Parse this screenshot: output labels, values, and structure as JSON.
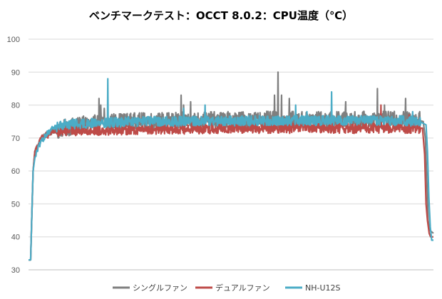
{
  "chart_data": {
    "type": "line",
    "title": "ベンチマークテスト：OCCT 8.0.2：CPU温度（℃）",
    "xlabel": "",
    "ylabel": "",
    "ylim": [
      30,
      100
    ],
    "yticks": [
      30,
      40,
      50,
      60,
      70,
      80,
      90,
      100
    ],
    "grid": true,
    "legend_position": "bottom",
    "x_count": 1150,
    "series": [
      {
        "name": "シングルファン",
        "color": "#7f7f7f",
        "keypoints": [
          [
            0,
            33
          ],
          [
            6,
            33
          ],
          [
            9,
            45
          ],
          [
            13,
            60
          ],
          [
            18,
            66
          ],
          [
            27,
            68
          ],
          [
            37,
            70
          ],
          [
            50,
            71
          ],
          [
            70,
            72
          ],
          [
            100,
            73
          ],
          [
            150,
            74
          ],
          [
            250,
            75
          ],
          [
            600,
            75.5
          ],
          [
            1000,
            75.5
          ],
          [
            1100,
            75.5
          ],
          [
            1120,
            75
          ],
          [
            1126,
            70
          ],
          [
            1130,
            58
          ],
          [
            1134,
            45
          ],
          [
            1138,
            42
          ],
          [
            1150,
            41
          ]
        ],
        "spikes": [
          [
            200,
            82
          ],
          [
            205,
            80
          ],
          [
            215,
            79
          ],
          [
            433,
            83
          ],
          [
            440,
            80
          ],
          [
            460,
            81
          ],
          [
            698,
            83
          ],
          [
            708,
            90
          ],
          [
            718,
            83
          ],
          [
            740,
            82
          ],
          [
            900,
            81
          ],
          [
            990,
            85
          ],
          [
            1010,
            80
          ],
          [
            1070,
            82
          ],
          [
            1110,
            78
          ]
        ]
      },
      {
        "name": "デュアルファン",
        "color": "#be4b48",
        "keypoints": [
          [
            0,
            33
          ],
          [
            6,
            33
          ],
          [
            9,
            45
          ],
          [
            13,
            60
          ],
          [
            18,
            66
          ],
          [
            27,
            68
          ],
          [
            37,
            70
          ],
          [
            50,
            71
          ],
          [
            70,
            72
          ],
          [
            120,
            72.3
          ],
          [
            300,
            72.6
          ],
          [
            600,
            73
          ],
          [
            900,
            73
          ],
          [
            1100,
            73
          ],
          [
            1118,
            73
          ],
          [
            1124,
            65
          ],
          [
            1128,
            50
          ],
          [
            1132,
            45
          ],
          [
            1137,
            41
          ],
          [
            1141,
            40
          ],
          [
            1150,
            40
          ]
        ],
        "spikes": [
          [
            55,
            70
          ],
          [
            1000,
            80
          ],
          [
            1080,
            77
          ]
        ]
      },
      {
        "name": "NH-U12S",
        "color": "#4bacc6",
        "keypoints": [
          [
            0,
            33
          ],
          [
            6,
            33
          ],
          [
            9,
            45
          ],
          [
            13,
            60
          ],
          [
            18,
            64
          ],
          [
            27,
            67
          ],
          [
            37,
            69
          ],
          [
            50,
            71
          ],
          [
            70,
            73
          ],
          [
            100,
            74.2
          ],
          [
            300,
            75
          ],
          [
            700,
            75.3
          ],
          [
            1050,
            75.3
          ],
          [
            1110,
            75
          ],
          [
            1128,
            74
          ],
          [
            1132,
            66
          ],
          [
            1136,
            52
          ],
          [
            1140,
            43
          ],
          [
            1144,
            39
          ],
          [
            1150,
            39
          ]
        ],
        "spikes": [
          [
            225,
            88
          ],
          [
            440,
            79
          ],
          [
            501,
            80
          ],
          [
            758,
            80
          ],
          [
            790,
            78
          ],
          [
            860,
            84
          ],
          [
            1090,
            78
          ]
        ]
      }
    ]
  }
}
